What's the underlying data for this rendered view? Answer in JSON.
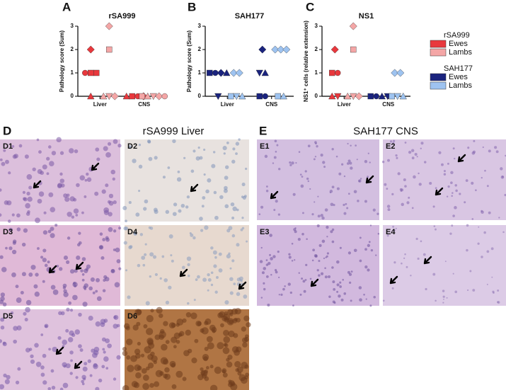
{
  "chart_data": [
    {
      "type": "scatter",
      "label": "A",
      "title": "rSA999",
      "ylabel": "Pathology score (Sum)",
      "ylim": [
        0,
        3
      ],
      "yticks": [
        0,
        1,
        2,
        3
      ],
      "groups": [
        {
          "category": "Liver",
          "series": [
            {
              "color": "#e8383d",
              "values": [
                0,
                1,
                1,
                1,
                2
              ],
              "shapes": [
                "triangle",
                "circle",
                "square",
                "square",
                "diamond"
              ]
            },
            {
              "color": "#f4a6a6",
              "values": [
                0,
                0,
                0,
                2,
                3
              ],
              "shapes": [
                "triangle",
                "triangle-down",
                "diamond",
                "square",
                "diamond"
              ]
            }
          ]
        },
        {
          "category": "CNS",
          "series": [
            {
              "color": "#e8383d",
              "values": [
                0,
                0,
                0,
                0
              ],
              "shapes": [
                "triangle",
                "square",
                "circle",
                "diamond"
              ]
            },
            {
              "color": "#f4a6a6",
              "values": [
                0,
                0,
                0,
                0,
                0
              ],
              "shapes": [
                "square",
                "triangle",
                "triangle-down",
                "diamond",
                "circle"
              ]
            }
          ]
        }
      ]
    },
    {
      "type": "scatter",
      "label": "B",
      "title": "SAH177",
      "ylabel": "Pathology score (Sum)",
      "ylim": [
        0,
        3
      ],
      "yticks": [
        0,
        1,
        2,
        3
      ],
      "groups": [
        {
          "category": "Liver",
          "series": [
            {
              "color": "#1a237e",
              "values": [
                1,
                1,
                1,
                1,
                0
              ],
              "shapes": [
                "square",
                "circle",
                "diamond",
                "triangle",
                "triangle-down"
              ]
            },
            {
              "color": "#9ec3f0",
              "values": [
                1,
                1,
                0,
                0,
                0
              ],
              "shapes": [
                "diamond",
                "diamond",
                "square",
                "triangle-down",
                "triangle"
              ]
            }
          ]
        },
        {
          "category": "CNS",
          "series": [
            {
              "color": "#1a237e",
              "values": [
                2,
                1,
                1,
                0,
                0
              ],
              "shapes": [
                "diamond",
                "triangle-down",
                "triangle",
                "square",
                "circle"
              ]
            },
            {
              "color": "#9ec3f0",
              "values": [
                2,
                2,
                2,
                0,
                0
              ],
              "shapes": [
                "diamond",
                "diamond",
                "diamond",
                "square",
                "triangle"
              ]
            }
          ]
        }
      ]
    },
    {
      "type": "scatter",
      "label": "C",
      "title": "NS1",
      "ylabel": "NS1⁺ cells (relative extension)",
      "ylim": [
        0,
        3
      ],
      "yticks": [
        0,
        1,
        2,
        3
      ],
      "groups": [
        {
          "category": "Liver",
          "series": [
            {
              "color": "#e8383d",
              "values": [
                2,
                1,
                1,
                0,
                0
              ],
              "shapes": [
                "diamond",
                "square",
                "circle",
                "triangle",
                "triangle-down"
              ]
            },
            {
              "color": "#f4a6a6",
              "values": [
                3,
                2,
                0,
                0,
                0
              ],
              "shapes": [
                "diamond",
                "square",
                "triangle",
                "triangle-down",
                "diamond"
              ]
            }
          ]
        },
        {
          "category": "CNS",
          "series": [
            {
              "color": "#1a237e",
              "values": [
                0,
                0,
                0,
                0
              ],
              "shapes": [
                "square",
                "circle",
                "triangle",
                "triangle-down"
              ]
            },
            {
              "color": "#9ec3f0",
              "values": [
                1,
                1,
                0,
                0,
                0
              ],
              "shapes": [
                "diamond",
                "diamond",
                "square",
                "triangle-down",
                "triangle"
              ]
            }
          ]
        }
      ]
    }
  ],
  "legend": [
    {
      "title": "rSA999",
      "items": [
        {
          "name": "Ewes",
          "color": "#e8383d"
        },
        {
          "name": "Lambs",
          "color": "#f4a6a6"
        }
      ]
    },
    {
      "title": "SAH177",
      "items": [
        {
          "name": "Ewes",
          "color": "#1a237e"
        },
        {
          "name": "Lambs",
          "color": "#9ec3f0"
        }
      ]
    }
  ],
  "panels": [
    {
      "label": "D",
      "title": "rSA999 Liver",
      "images": [
        "D1",
        "D2",
        "D3",
        "D4",
        "D5",
        "D6"
      ]
    },
    {
      "label": "E",
      "title": "SAH177 CNS",
      "images": [
        "E1",
        "E2",
        "E3",
        "E4"
      ]
    }
  ]
}
